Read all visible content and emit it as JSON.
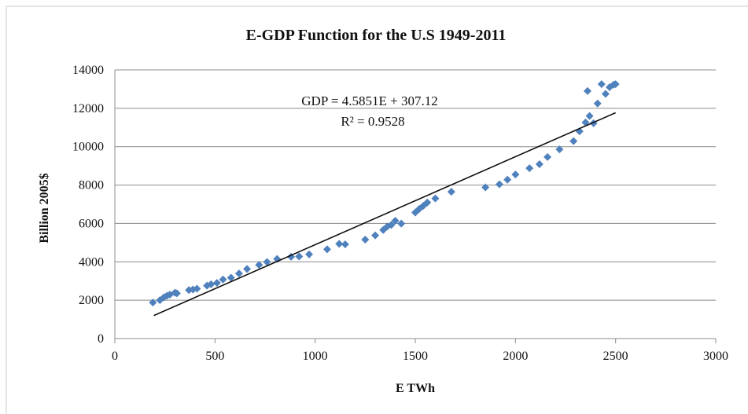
{
  "chart_data": {
    "type": "scatter",
    "title": "E-GDP Function  for the U.S 1949-2011",
    "xlabel": "E TWh",
    "ylabel": "Billion 2005$",
    "xlim": [
      0,
      3000
    ],
    "ylim": [
      0,
      14000
    ],
    "x_ticks": [
      "0",
      "500",
      "1000",
      "1500",
      "2000",
      "2500",
      "3000"
    ],
    "y_ticks": [
      "0",
      "2000",
      "4000",
      "6000",
      "8000",
      "10000",
      "12000",
      "14000"
    ],
    "grid": "horizontal",
    "legend": "none",
    "point_color": "#4f81bd",
    "trendline": {
      "equation": "GDP = 4.5851E + 307.12",
      "r_squared": "R² = 0.9528",
      "slope": 4.5851,
      "intercept": 307.12,
      "x_range": [
        195,
        2500
      ]
    },
    "series": [
      {
        "points": [
          [
            190,
            1880
          ],
          [
            225,
            2000
          ],
          [
            245,
            2150
          ],
          [
            260,
            2230
          ],
          [
            275,
            2290
          ],
          [
            300,
            2390
          ],
          [
            310,
            2360
          ],
          [
            370,
            2530
          ],
          [
            390,
            2560
          ],
          [
            410,
            2600
          ],
          [
            460,
            2760
          ],
          [
            480,
            2830
          ],
          [
            510,
            2900
          ],
          [
            540,
            3080
          ],
          [
            580,
            3170
          ],
          [
            620,
            3390
          ],
          [
            660,
            3630
          ],
          [
            720,
            3840
          ],
          [
            760,
            3990
          ],
          [
            810,
            4150
          ],
          [
            880,
            4260
          ],
          [
            920,
            4280
          ],
          [
            970,
            4390
          ],
          [
            1060,
            4650
          ],
          [
            1120,
            4940
          ],
          [
            1150,
            4910
          ],
          [
            1250,
            5160
          ],
          [
            1300,
            5380
          ],
          [
            1340,
            5660
          ],
          [
            1360,
            5840
          ],
          [
            1380,
            5920
          ],
          [
            1400,
            6140
          ],
          [
            1430,
            5990
          ],
          [
            1500,
            6570
          ],
          [
            1520,
            6760
          ],
          [
            1540,
            6920
          ],
          [
            1560,
            7090
          ],
          [
            1600,
            7300
          ],
          [
            1680,
            7650
          ],
          [
            1850,
            7880
          ],
          [
            1920,
            8040
          ],
          [
            1960,
            8280
          ],
          [
            2000,
            8550
          ],
          [
            2070,
            8880
          ],
          [
            2120,
            9090
          ],
          [
            2160,
            9460
          ],
          [
            2220,
            9860
          ],
          [
            2290,
            10290
          ],
          [
            2320,
            10800
          ],
          [
            2350,
            11260
          ],
          [
            2370,
            11600
          ],
          [
            2360,
            12900
          ],
          [
            2390,
            11220
          ],
          [
            2410,
            12250
          ],
          [
            2430,
            13260
          ],
          [
            2450,
            12750
          ],
          [
            2470,
            13100
          ],
          [
            2490,
            13230
          ],
          [
            2500,
            13260
          ]
        ]
      }
    ]
  }
}
